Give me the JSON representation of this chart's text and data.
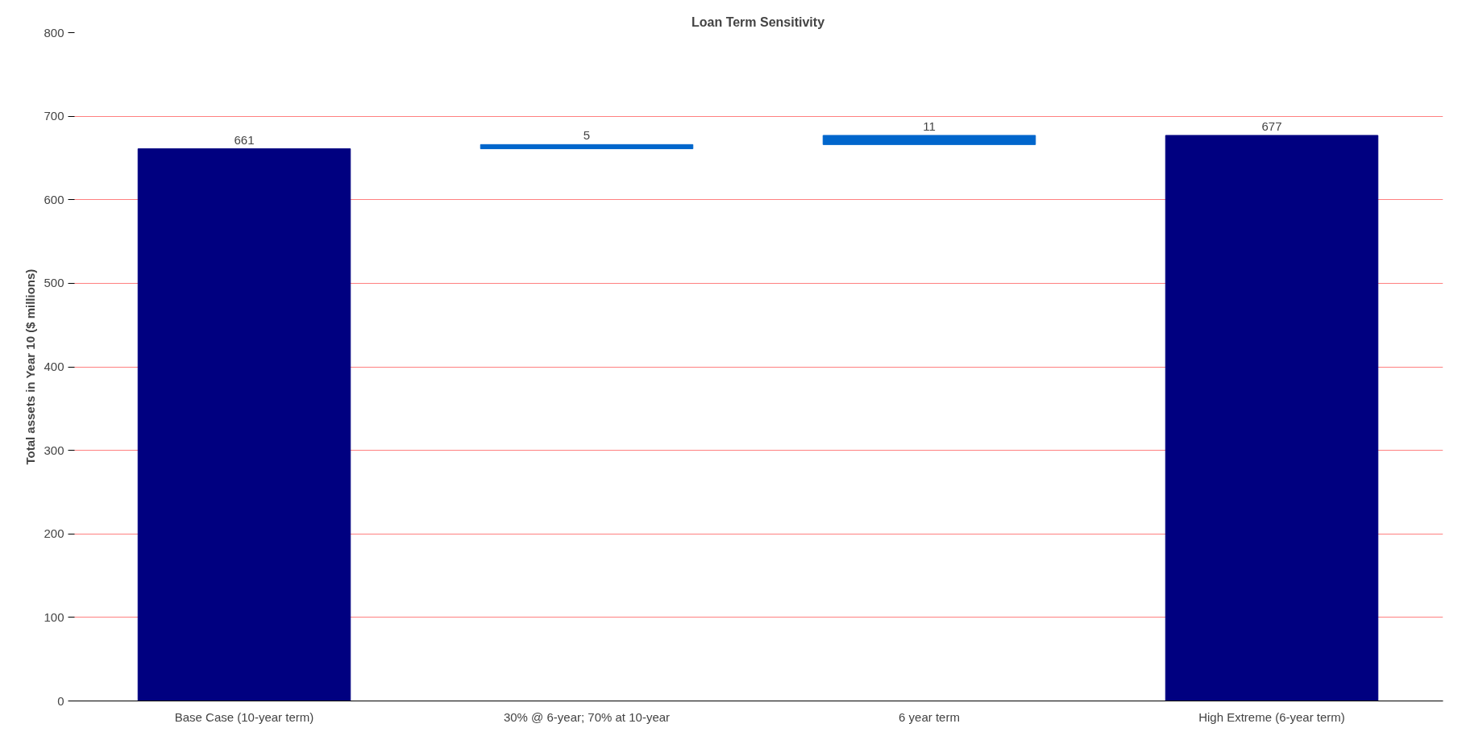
{
  "chart_data": {
    "type": "bar",
    "title": "Loan Term Sensitivity",
    "ylabel": "Total assets in Year 10 ($ millions)",
    "categories": [
      "Base Case (10-year term)",
      "30% @ 6-year; 70% at 10-year",
      "6 year term",
      "High Extreme (6-year term)"
    ],
    "values": [
      661,
      5,
      11,
      677
    ],
    "base": [
      0,
      661,
      666,
      0
    ],
    "colors": [
      "#000080",
      "#0066cc",
      "#0066cc",
      "#000080"
    ],
    "ylim": [
      0,
      800
    ],
    "yticks": [
      0,
      100,
      200,
      300,
      400,
      500,
      600,
      700,
      800
    ],
    "grid": "y",
    "data_labels": true
  }
}
